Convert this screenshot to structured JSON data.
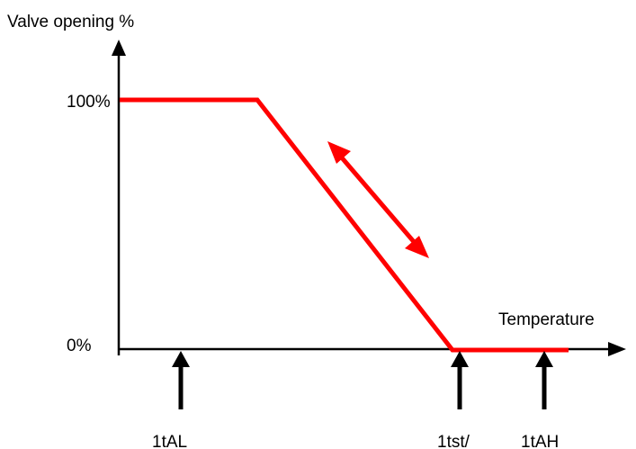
{
  "diagram": {
    "y_axis_label": "Valve opening %",
    "x_axis_label": "Temperature",
    "y_tick_high": "100%",
    "y_tick_low": "0%",
    "markers": {
      "low_alarm": "1tAL",
      "setpoint": "1tst/",
      "high_alarm": "1tAH"
    },
    "colors": {
      "curve": "#ff0000",
      "axes": "#000000"
    },
    "icons": {
      "double_arrow": "adjustable-slope-double-arrow-icon",
      "marker_arrow": "up-arrow-icon"
    }
  }
}
